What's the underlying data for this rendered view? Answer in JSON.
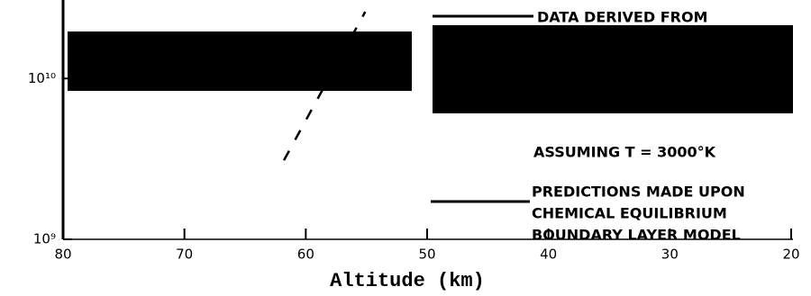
{
  "chart_data": {
    "type": "line",
    "xlabel": "Altitude (km)",
    "x": [
      61.8,
      55.1
    ],
    "series": [
      {
        "color": "#000000",
        "values": [
          3100000000,
          26000000000
        ]
      }
    ],
    "xlim": [
      80,
      20
    ],
    "xticks": [
      80,
      70,
      60,
      50,
      40,
      30,
      20
    ],
    "ylim": [
      1000000000,
      30000000000
    ],
    "log_y": true,
    "yticks": [
      {
        "value": 1000000000,
        "label": "10⁹"
      },
      {
        "value": 10000000000,
        "label": "10¹⁰"
      }
    ],
    "annotations": [
      "DATA DERIVED FROM",
      "ASSUMING T = 3000°K",
      "PREDICTIONS MADE UPON",
      "CHEMICAL EQUILIBRIUM",
      "BOUNDARY LAYER MODEL"
    ]
  }
}
